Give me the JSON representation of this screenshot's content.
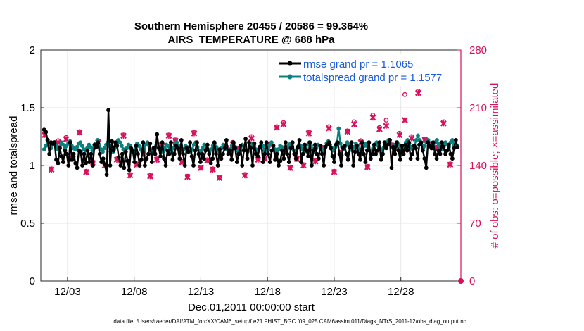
{
  "chart_data": {
    "type": "line",
    "title_line1": "Southern Hemisphere 20455 / 20586 = 99.364%",
    "title_line2": "AIRS_TEMPERATURE @ 688 hPa",
    "xlabel": "Dec.01,2011 00:00:00 start",
    "ylabel_left": "rmse and totalspread",
    "ylabel_right": "# of obs: o=possible; ×=assimilated",
    "footnote": "data file: /Users/raeder/DAI/ATM_forcXX/CAM6_setup/f.e21.FHIST_BGC.f09_025.CAM6assim.011/Diags_NTrS_2011-12/obs_diag_output.nc",
    "xlim": [
      0,
      31.5
    ],
    "ylim_left": [
      0,
      2
    ],
    "ylim_right": [
      0,
      280
    ],
    "left_ticks": [
      "0",
      "0.5",
      "1",
      "1.5",
      "2"
    ],
    "right_ticks": [
      "0",
      "70",
      "140",
      "210",
      "280"
    ],
    "x_ticks": [
      "12/03",
      "12/08",
      "12/13",
      "12/18",
      "12/23",
      "12/28"
    ],
    "x_tick_positions": [
      2,
      7,
      12,
      17,
      22,
      27
    ],
    "colors": {
      "rmse": "#000000",
      "spread": "#0a8080",
      "obs": "#d6105a",
      "legend_text": "#1a5bd8",
      "right_axis": "#d6105a"
    },
    "series": [
      {
        "name": "rmse grand pr = 1.1065",
        "values": [
          1.31,
          1.29,
          1.22,
          1.1,
          1.2,
          1.19,
          1.2,
          1.05,
          1.02,
          1.15,
          1.08,
          1.03,
          1.13,
          1.1,
          1.0,
          1.2,
          1.05,
          1.1,
          1.02,
          0.98,
          1.13,
          1.12,
          1.0,
          1.1,
          1.02,
          1.13,
          1.03,
          1.1,
          1.0,
          1.18,
          1.16,
          1.2,
          1.1,
          1.03,
          1.06,
          1.01,
          0.92,
          1.48,
          1.0,
          1.21,
          1.13,
          1.2,
          1.17,
          1.07,
          1.0,
          1.1,
          0.98,
          1.12,
          1.04,
          0.96,
          1.15,
          1.13,
          1.03,
          1.17,
          1.1,
          1.0,
          1.05,
          1.2,
          1.0,
          1.06,
          1.1,
          1.19,
          1.03,
          1.15,
          1.1,
          1.27,
          1.15,
          1.08,
          1.2,
          1.06,
          1.0,
          1.13,
          1.1,
          1.2,
          1.05,
          1.1,
          1.17,
          1.15,
          1.06,
          1.22,
          1.1,
          1.0,
          1.15,
          1.12,
          1.2,
          1.08,
          1.0,
          1.13,
          1.2,
          1.1,
          1.03,
          1.1,
          1.06,
          1.13,
          1.18,
          1.1,
          1.02,
          1.06,
          1.2,
          1.1,
          1.0,
          1.14,
          1.06,
          1.1,
          1.15,
          1.22,
          1.1,
          1.13,
          1.05,
          1.2,
          1.15,
          1.03,
          1.1,
          1.17,
          1.0,
          1.13,
          1.23,
          1.06,
          1.2,
          1.15,
          1.0,
          1.19,
          1.1,
          1.08,
          1.16,
          1.2,
          1.03,
          1.1,
          1.2,
          1.1,
          1.03,
          1.13,
          1.17,
          1.05,
          1.1,
          1.0,
          1.04,
          1.13,
          1.06,
          1.2,
          1.1,
          1.03,
          1.15,
          1.2,
          1.1,
          1.06,
          1.16,
          1.22,
          1.03,
          1.1,
          1.18,
          1.13,
          1.08,
          1.2,
          1.0,
          1.13,
          1.18,
          1.1,
          1.06,
          1.17,
          1.1,
          1.0,
          1.16,
          1.18,
          1.2,
          1.15,
          1.08,
          1.03,
          1.18,
          1.2,
          1.1,
          1.0,
          1.15,
          1.17,
          1.1,
          1.05,
          1.16,
          1.2,
          1.0,
          1.12,
          1.17,
          1.1,
          1.05,
          1.2,
          1.1,
          1.03,
          1.13,
          1.2,
          1.06,
          1.1,
          1.18,
          1.1,
          1.13,
          1.2,
          1.05,
          1.1,
          1.2,
          1.15,
          1.18,
          1.22,
          0.98,
          1.16,
          1.1,
          1.2,
          1.13,
          1.05,
          1.17,
          1.1,
          1.18,
          1.13,
          1.2,
          1.06,
          1.1,
          1.17,
          1.15,
          1.06,
          1.18,
          1.2,
          1.13,
          1.06,
          0.98,
          1.2,
          1.17,
          1.15,
          1.2,
          1.1,
          1.06,
          1.13,
          1.1,
          1.2,
          1.16,
          1.1,
          1.13,
          1.18,
          1.1,
          1.06,
          1.15,
          1.22,
          1.16
        ]
      },
      {
        "name": "totalspread grand pr = 1.1577",
        "values": [
          1.14,
          1.17,
          1.22,
          1.19,
          1.15,
          1.18,
          1.2,
          1.17,
          1.14,
          1.16,
          1.2,
          1.18,
          1.15,
          1.17,
          1.19,
          1.21,
          1.17,
          1.15,
          1.14,
          1.16,
          1.19,
          1.2,
          1.17,
          1.14,
          1.13,
          1.15,
          1.18,
          1.16,
          1.13,
          1.15,
          1.19,
          1.22,
          1.18,
          1.14,
          1.12,
          1.15,
          1.18,
          1.2,
          1.17,
          1.14,
          1.12,
          1.15,
          1.18,
          1.22,
          1.2,
          1.17,
          1.14,
          1.12,
          1.15,
          1.18,
          1.17,
          1.13,
          1.12,
          1.15,
          1.19,
          1.17,
          1.14,
          1.12,
          1.14,
          1.18,
          1.2,
          1.17,
          1.13,
          1.12,
          1.14,
          1.17,
          1.19,
          1.16,
          1.13,
          1.12,
          1.15,
          1.18,
          1.17,
          1.14,
          1.12,
          1.15,
          1.18,
          1.2,
          1.17,
          1.13,
          1.12,
          1.14,
          1.17,
          1.16,
          1.13,
          1.12,
          1.14,
          1.18,
          1.2,
          1.16,
          1.13,
          1.12,
          1.15,
          1.18,
          1.17,
          1.14,
          1.12,
          1.14,
          1.17,
          1.19,
          1.16,
          1.13,
          1.12,
          1.15,
          1.18,
          1.17,
          1.14,
          1.12,
          1.14,
          1.17,
          1.19,
          1.16,
          1.13,
          1.12,
          1.15,
          1.18,
          1.17,
          1.14,
          1.12,
          1.13,
          1.16,
          1.19,
          1.17,
          1.14,
          1.12,
          1.15,
          1.18,
          1.17,
          1.13,
          1.12,
          1.15,
          1.18,
          1.2,
          1.17,
          1.14,
          1.12,
          1.14,
          1.17,
          1.16,
          1.13,
          1.12,
          1.14,
          1.17,
          1.19,
          1.16,
          1.13,
          1.12,
          1.15,
          1.18,
          1.17,
          1.14,
          1.12,
          1.15,
          1.18,
          1.2,
          1.17,
          1.14,
          1.12,
          1.15,
          1.18,
          1.17,
          1.14,
          1.13,
          1.16,
          1.19,
          1.21,
          1.18,
          1.15,
          1.13,
          1.16,
          1.2,
          1.32,
          1.19,
          1.16,
          1.14,
          1.17,
          1.2,
          1.18,
          1.15,
          1.13,
          1.16,
          1.19,
          1.17,
          1.14,
          1.12,
          1.14,
          1.17,
          1.19,
          1.16,
          1.13,
          1.12,
          1.15,
          1.18,
          1.2,
          1.17,
          1.14,
          1.12,
          1.15,
          1.18,
          1.2,
          1.22,
          1.19,
          1.16,
          1.14,
          1.17,
          1.2,
          1.18,
          1.15,
          1.13,
          1.16,
          1.2,
          1.22,
          1.19,
          1.16,
          1.14,
          1.17,
          1.22,
          1.26,
          1.22,
          1.18,
          1.15,
          1.17,
          1.2,
          1.22,
          1.18,
          1.15,
          1.17,
          1.2,
          1.22,
          1.19,
          1.16,
          1.14,
          1.17,
          1.2,
          1.18,
          1.16,
          1.2,
          1.22,
          1.18,
          1.16,
          1.17
        ]
      }
    ],
    "obs_series": {
      "name": "# of obs",
      "x": [
        0.3,
        0.8,
        1.3,
        1.9,
        2.4,
        2.9,
        3.4,
        3.9,
        4.3,
        4.8,
        5.3,
        5.7,
        6.2,
        6.7,
        7.2,
        7.7,
        8.2,
        8.7,
        9.1,
        9.6,
        10.1,
        10.6,
        11.0,
        11.5,
        12.0,
        12.5,
        12.9,
        13.4,
        13.9,
        14.4,
        14.9,
        15.3,
        15.8,
        16.3,
        16.8,
        17.2,
        17.7,
        18.2,
        18.7,
        19.2,
        19.7,
        20.1,
        20.6,
        21.1,
        21.6,
        22.0,
        22.5,
        23.0,
        23.5,
        24.0,
        24.5,
        24.9,
        25.4,
        25.9,
        26.4,
        26.9,
        27.3,
        27.8,
        28.3,
        28.8,
        29.3,
        29.7,
        30.2,
        30.7
      ],
      "assimilated": [
        177,
        135,
        168,
        172,
        148,
        180,
        132,
        143,
        168,
        140,
        159,
        147,
        176,
        128,
        141,
        154,
        127,
        147,
        164,
        176,
        170,
        144,
        126,
        179,
        137,
        146,
        135,
        125,
        161,
        166,
        160,
        128,
        173,
        147,
        148,
        165,
        186,
        190,
        137,
        148,
        140,
        179,
        145,
        161,
        185,
        132,
        155,
        181,
        190,
        168,
        138,
        198,
        184,
        188,
        164,
        177,
        195,
        173,
        228,
        171,
        166,
        161,
        191,
        141
      ],
      "possible": [
        179,
        136,
        170,
        174,
        149,
        181,
        133,
        144,
        170,
        141,
        160,
        148,
        177,
        129,
        142,
        155,
        128,
        148,
        166,
        177,
        171,
        145,
        127,
        180,
        138,
        147,
        136,
        126,
        162,
        168,
        161,
        129,
        175,
        148,
        149,
        166,
        187,
        192,
        138,
        149,
        141,
        180,
        146,
        162,
        187,
        133,
        156,
        182,
        193,
        170,
        139,
        201,
        186,
        195,
        165,
        179,
        226,
        175,
        230,
        172,
        167,
        162,
        193,
        142
      ]
    },
    "obs_last_point": {
      "x": 31.5,
      "value": 0
    }
  }
}
